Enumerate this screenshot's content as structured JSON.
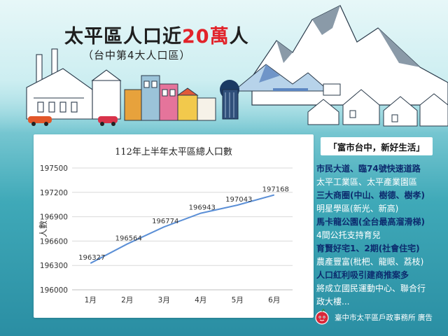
{
  "header": {
    "title_pre": "太平區人口近",
    "title_highlight": "20萬",
    "title_post": "人",
    "subtitle": "（台中第4大人口區）"
  },
  "chart_data": {
    "type": "line",
    "title": "112年上半年太平區總人口數",
    "xlabel": "",
    "ylabel": "人數",
    "categories": [
      "1月",
      "2月",
      "3月",
      "4月",
      "5月",
      "6月"
    ],
    "series": [
      {
        "values": [
          196327,
          196564,
          196774,
          196943,
          197043,
          197168
        ]
      }
    ],
    "ylim": [
      196000,
      197500
    ],
    "yticks": [
      196000,
      196300,
      196600,
      196900,
      197200,
      197500
    ],
    "grid": true,
    "line_color": "#5b8fd6"
  },
  "sidebar": {
    "slogan": "「富市台中，新好生活」",
    "items": [
      {
        "text": "市民大道、臨74號快速道路",
        "strong": true
      },
      {
        "text": "太平工業區、太平產業園區",
        "strong": false
      },
      {
        "text": "三大商圈(中山、樹德、樹孝)",
        "strong": true
      },
      {
        "text": "明星學區(新光、新高)",
        "strong": false
      },
      {
        "text": "馬卡龍公園(全台最高溜滑梯)",
        "strong": true
      },
      {
        "text": "4間公托支持育兒",
        "strong": false
      },
      {
        "text": "育賢好宅1、2期(社會住宅)",
        "strong": true
      },
      {
        "text": "農產豐富(枇杷、龍眼、荔枝)",
        "strong": false
      },
      {
        "text": "人口紅利吸引建商推案多",
        "strong": true
      },
      {
        "text": "將成立國民運動中心、聯合行",
        "strong": false
      },
      {
        "text": "政大樓...",
        "strong": false
      }
    ]
  },
  "footer": {
    "text": "臺中市太平區戶政事務所 廣告"
  },
  "colors": {
    "accent_red": "#e2232a",
    "strong_text": "#0c2b6e",
    "bg_teal": "#3fa9b8"
  }
}
